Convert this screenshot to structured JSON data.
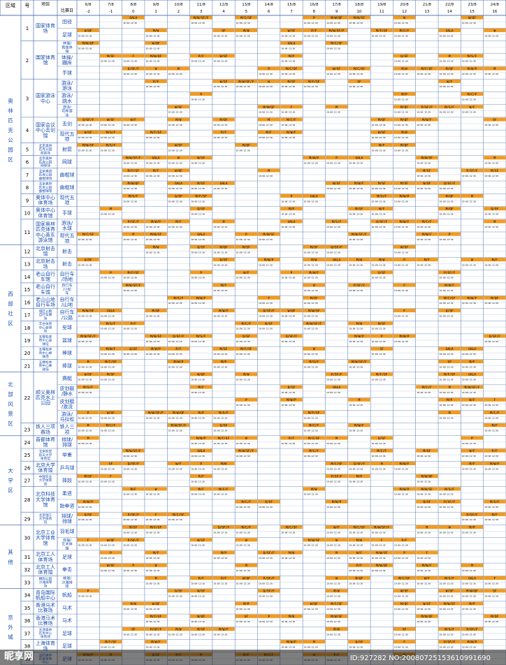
{
  "header": {
    "zone_label": "区域",
    "no_label": "号",
    "venue_label": "场馆",
    "sport_label": "比赛日",
    "dates": [
      "6/8",
      "7/8",
      "8/8",
      "9/8",
      "10/8",
      "11/8",
      "12/8",
      "13/8",
      "14/8",
      "15/8",
      "16/8",
      "17/8",
      "18/8",
      "19/8",
      "20/8",
      "21/8",
      "22/8",
      "23/8",
      "24/8"
    ],
    "days": [
      "-2",
      "-1",
      "0",
      "1",
      "2",
      "3",
      "4",
      "5",
      "6",
      "7",
      "8",
      "9",
      "10",
      "11",
      "12",
      "13",
      "14",
      "15",
      "16"
    ]
  },
  "zones": [
    {
      "name": "奥林匹克公园区",
      "from": 1,
      "to": 11
    },
    {
      "name": "西部社区",
      "from": 12,
      "to": 21
    },
    {
      "name": "北部风景区",
      "from": 22,
      "to": 23
    },
    {
      "name": "大学区",
      "from": 24,
      "to": 29
    },
    {
      "name": "其他",
      "from": 30,
      "to": 33
    },
    {
      "name": "京外城",
      "from": 34,
      "to": 39
    }
  ],
  "rows": [
    {
      "no": "1",
      "venue": "国家体育场",
      "sports": [
        "田径",
        "足球"
      ]
    },
    {
      "no": "2",
      "venue": "国家体育馆",
      "sports": [
        "体操/竞技体操",
        "体操/蹦床",
        "手球"
      ]
    },
    {
      "no": "3",
      "venue": "国家游泳中心",
      "sports": [
        "游泳/游泳",
        "游泳/跳水",
        "游泳/花样游泳"
      ]
    },
    {
      "no": "4",
      "venue": "国家会议中心击剑馆",
      "sports": [
        "击剑",
        "现代五项"
      ]
    },
    {
      "no": "5",
      "venue": "北京奥林匹克公园射箭场",
      "sports": [
        "射箭"
      ]
    },
    {
      "no": "6",
      "venue": "北京奥林匹克公园网球场",
      "sports": [
        "网球"
      ]
    },
    {
      "no": "7",
      "venue": "北京奥林匹克公园曲棍球场",
      "sports": [
        "曲棍球"
      ]
    },
    {
      "no": "8",
      "venue": "北京奥林匹克公园曲棍球场",
      "sports": [
        "曲棍球"
      ]
    },
    {
      "no": "9",
      "venue": "奥体中心体育场",
      "sports": [
        "现代五项"
      ]
    },
    {
      "no": "10",
      "venue": "奥体中心体育馆",
      "sports": [
        "手球"
      ]
    },
    {
      "no": "11",
      "venue": "国家奥林匹克体育中心英东游泳馆",
      "sports": [
        "游泳/水球",
        "现代五项"
      ]
    },
    {
      "no": "12",
      "venue": "北京射击馆",
      "sports": [
        "射击"
      ]
    },
    {
      "no": "13",
      "venue": "北京射击场",
      "sports": [
        "射击"
      ]
    },
    {
      "no": "14",
      "venue": "老山自行车馆",
      "sports": [
        "自行车/场地"
      ]
    },
    {
      "no": "15",
      "venue": "老山自行车馆",
      "sports": [
        "自行车/小轮车"
      ]
    },
    {
      "no": "16",
      "venue": "老山山地自行车场",
      "sports": [
        "自行车/山地"
      ]
    },
    {
      "no": "17",
      "venue": "城区公路自行车赛场",
      "sports": [
        "自行车/公路"
      ]
    },
    {
      "no": "18",
      "venue": "丰台体育中心垒球场",
      "sports": [
        "垒球"
      ]
    },
    {
      "no": "19",
      "venue": "五棵松体育中心篮球馆",
      "sports": [
        "篮球"
      ]
    },
    {
      "no": "20",
      "venue": "五棵松体育中心棒球场",
      "sports": [
        "棒球"
      ]
    },
    {
      "no": "21",
      "venue": "五棵松体育中心棒球场",
      "sports": [
        "棒球"
      ]
    },
    {
      "no": "22",
      "venue": "顺义奥林匹克水上公园",
      "sports": [
        "赛艇",
        "皮划艇/静水",
        "皮划艇/激流",
        "游泳/马拉松"
      ]
    },
    {
      "no": "23",
      "venue": "铁人三项赛场",
      "sports": [
        "铁人三项"
      ]
    },
    {
      "no": "24",
      "venue": "首都体育馆",
      "sports": [
        "排球/排球"
      ]
    },
    {
      "no": "25",
      "venue": "北京航空航天大学体育馆",
      "sports": [
        "举重"
      ]
    },
    {
      "no": "26",
      "venue": "北京大学体育馆",
      "sports": [
        "乒乓球"
      ]
    },
    {
      "no": "27",
      "venue": "中国农业大学体育馆",
      "sports": [
        "摔跤"
      ]
    },
    {
      "no": "28",
      "venue": "北京科技大学体育馆",
      "sports": [
        "柔道",
        "跆拳道"
      ]
    },
    {
      "no": "29",
      "venue": "北京理工大学体育馆",
      "sports": [
        "排球/排球"
      ]
    },
    {
      "no": "30",
      "venue": "北京工业大学体育馆",
      "sports": [
        "羽毛球",
        "体操/艺术体操"
      ]
    },
    {
      "no": "31",
      "venue": "北京工人体育场",
      "sports": [
        "足球"
      ]
    },
    {
      "no": "32",
      "venue": "北京工人体育馆",
      "sports": [
        "拳击"
      ]
    },
    {
      "no": "33",
      "venue": "朝阳公园沙滩排球场",
      "sports": [
        "排球/沙滩排球"
      ]
    },
    {
      "no": "34",
      "venue": "青岛国际帆船中心",
      "sports": [
        "帆船"
      ]
    },
    {
      "no": "35",
      "venue": "香港马术比赛场",
      "sports": [
        "马术"
      ]
    },
    {
      "no": "36",
      "venue": "香港马术比赛场",
      "sports": [
        "马术"
      ]
    },
    {
      "no": "37",
      "venue": "天津奥林匹克中心体育场",
      "sports": [
        "足球"
      ]
    },
    {
      "no": "38",
      "venue": "上海体育场",
      "sports": [
        "足球"
      ]
    },
    {
      "no": "39",
      "venue": "沈阳奥林匹克体育中心",
      "sports": [
        "足球"
      ]
    }
  ],
  "event_codes": [
    "M",
    "W",
    "M/F",
    "M/W/F",
    "M/W",
    "F",
    "GALA",
    "M/C/SF",
    "M/SF",
    "W/SF",
    "M/QF",
    "W/QF",
    "M/W/P",
    "P",
    "SF",
    "M/W/SF",
    "M/F/SF",
    "P/SF/F",
    "M/W/QF",
    "M/S/F",
    "M/C/F",
    "Q/SF",
    "Q/SF/F",
    "M/W/SF/F",
    "W/F",
    "P/F",
    "M/P"
  ],
  "colors": {
    "bar": "#f39a1c",
    "grid": "#4a6fb0",
    "text": "#1a4fb0",
    "header_line": "#3d5fa8"
  },
  "watermark": {
    "logo": "昵享网",
    "id": "ID:927282 NO:20080725153610991690"
  }
}
